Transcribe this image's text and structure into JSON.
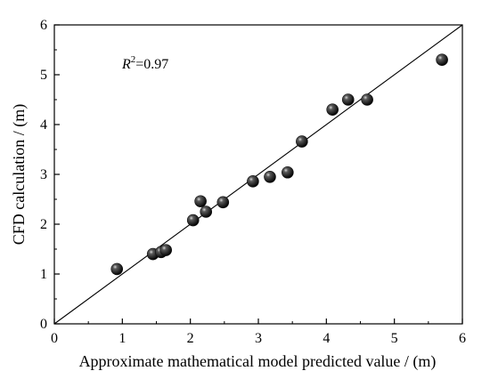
{
  "chart_data": {
    "type": "scatter",
    "xlabel": "Approximate mathematical model predicted value / (m)",
    "ylabel": "CFD calculation / (m)",
    "xlim": [
      0,
      6
    ],
    "ylim": [
      0,
      6
    ],
    "x_ticks": [
      "0",
      "1",
      "2",
      "3",
      "4",
      "5",
      "6"
    ],
    "y_ticks": [
      "0",
      "1",
      "2",
      "3",
      "4",
      "5",
      "6"
    ],
    "annotation": {
      "var": "R",
      "sup": "2",
      "value": "=0.97"
    },
    "reference_line": {
      "from": [
        0,
        0
      ],
      "to": [
        6,
        6
      ]
    },
    "marker_color": "#111111",
    "points": [
      {
        "x": 0.92,
        "y": 1.1
      },
      {
        "x": 1.45,
        "y": 1.4
      },
      {
        "x": 1.57,
        "y": 1.44
      },
      {
        "x": 1.64,
        "y": 1.48
      },
      {
        "x": 2.04,
        "y": 2.08
      },
      {
        "x": 2.15,
        "y": 2.46
      },
      {
        "x": 2.23,
        "y": 2.25
      },
      {
        "x": 2.48,
        "y": 2.44
      },
      {
        "x": 2.92,
        "y": 2.86
      },
      {
        "x": 3.17,
        "y": 2.95
      },
      {
        "x": 3.43,
        "y": 3.04
      },
      {
        "x": 3.64,
        "y": 3.66
      },
      {
        "x": 4.09,
        "y": 4.3
      },
      {
        "x": 4.32,
        "y": 4.5
      },
      {
        "x": 4.6,
        "y": 4.5
      },
      {
        "x": 5.7,
        "y": 5.3
      }
    ]
  }
}
